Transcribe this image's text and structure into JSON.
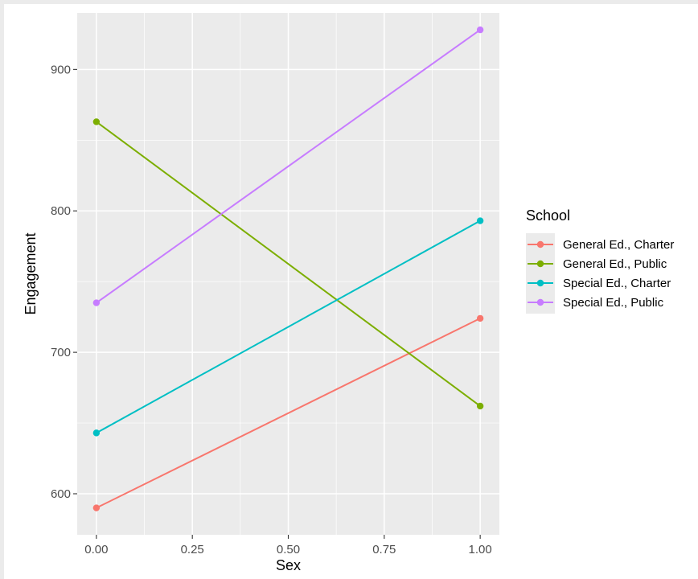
{
  "chart_data": {
    "type": "line",
    "title": "",
    "xlabel": "Sex",
    "ylabel": "Engagement",
    "x": [
      0,
      1
    ],
    "xlim": [
      -0.05,
      1.05
    ],
    "ylim": [
      571,
      940
    ],
    "x_ticks": [
      0,
      0.25,
      0.5,
      0.75,
      1.0
    ],
    "x_tick_labels": [
      "0.00",
      "0.25",
      "0.50",
      "0.75",
      "1.00"
    ],
    "y_ticks": [
      600,
      700,
      800,
      900
    ],
    "y_tick_labels": [
      "600",
      "700",
      "800",
      "900"
    ],
    "grid": true,
    "legend": {
      "title": "School",
      "position": "right"
    },
    "series": [
      {
        "name": "General Ed., Charter",
        "color": "#F8766D",
        "values": [
          590,
          724
        ]
      },
      {
        "name": "General Ed., Public",
        "color": "#7CAE00",
        "values": [
          863,
          662
        ]
      },
      {
        "name": "Special Ed., Charter",
        "color": "#00BFC4",
        "values": [
          643,
          793
        ]
      },
      {
        "name": "Special Ed., Public",
        "color": "#C77CFF",
        "values": [
          735,
          928
        ]
      }
    ]
  }
}
